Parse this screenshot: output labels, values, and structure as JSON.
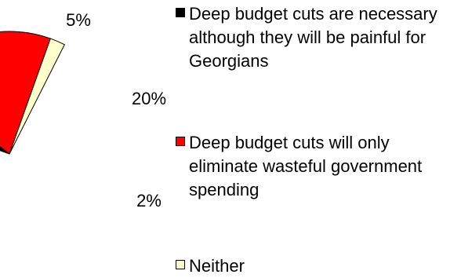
{
  "chart_data": {
    "type": "pie",
    "legend_position": "right",
    "slices": [
      {
        "name": "Deep budget cuts are necessary although they will be painful for Georgians",
        "value": 5,
        "label": "5%",
        "color": "#000000"
      },
      {
        "name": "Deep budget cuts will only eliminate wasteful government spending",
        "value": 20,
        "label": "20%",
        "color": "#ff0000"
      },
      {
        "name": "Neither",
        "value": 2,
        "label": "2%",
        "color": "#ffffcc"
      }
    ]
  }
}
